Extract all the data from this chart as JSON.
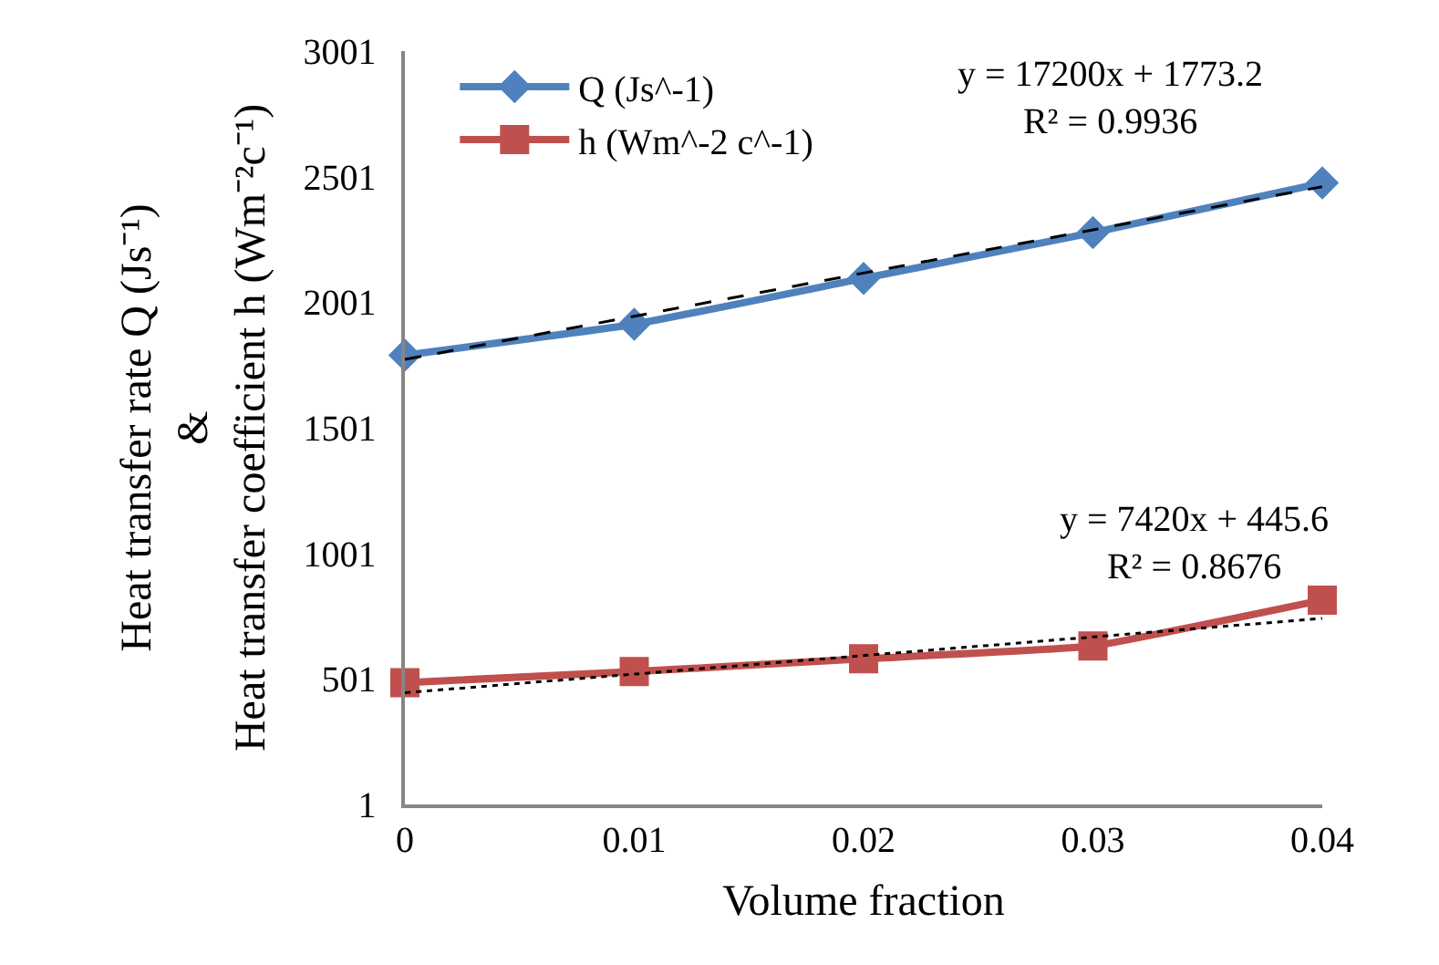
{
  "chart_data": {
    "type": "line",
    "xlabel": "Volume fraction",
    "ylabel": "Heat transfer rate Q (Js⁻¹)\n&\nHeat transfer coefficient h (Wm⁻²c⁻¹)",
    "x": [
      0,
      0.01,
      0.02,
      0.03,
      0.04
    ],
    "xlim": [
      0,
      0.04
    ],
    "xticks": [
      0,
      0.01,
      0.02,
      0.03,
      0.04
    ],
    "ylim": [
      1,
      3001
    ],
    "yticks": [
      1,
      501,
      1001,
      1501,
      2001,
      2501,
      3001
    ],
    "series": [
      {
        "name": "Q (Js^-1)",
        "color": "#4f81bd",
        "marker": "diamond",
        "values": [
          1790,
          1913,
          2096,
          2278,
          2476
        ]
      },
      {
        "name": "h (Wm^-2 c^-1)",
        "color": "#c0504d",
        "marker": "square",
        "values": [
          486,
          530,
          581,
          632,
          815
        ]
      },
      {
        "type": "line",
        "color": "#000000",
        "line_style": "dashed",
        "marker": "none",
        "values": [
          1773,
          1945,
          2117,
          2289,
          2461
        ]
      },
      {
        "type": "line",
        "color": "#000000",
        "line_style": "dotted",
        "marker": "none",
        "values": [
          446,
          520,
          594,
          668,
          742
        ]
      }
    ],
    "annotations": [
      "y = 17200x + 1773.2\nR² = 0.9936",
      "y = 7420x + 445.6\nR² = 0.8676"
    ],
    "legend": "top left"
  }
}
